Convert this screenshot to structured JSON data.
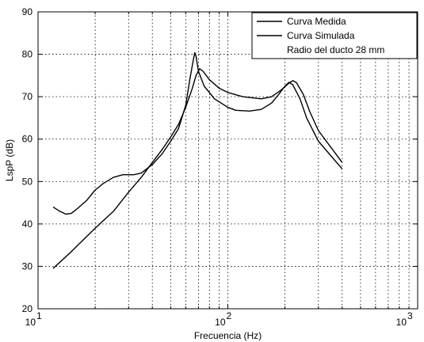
{
  "chart_data": {
    "type": "line",
    "xlabel": "Frecuencia (Hz)",
    "ylabel": "LspP  (dB)",
    "xscale": "log",
    "xlim": [
      10,
      1000
    ],
    "ylim": [
      20,
      90
    ],
    "grid": true,
    "legend_position": "top-right",
    "x_ticks": [
      {
        "value": 10,
        "base": "10",
        "exp": "1"
      },
      {
        "value": 100,
        "base": "10",
        "exp": "2"
      },
      {
        "value": 1000,
        "base": "10",
        "exp": "3"
      }
    ],
    "y_ticks": [
      20,
      30,
      40,
      50,
      60,
      70,
      80,
      90
    ],
    "legend_note": "Radio del ducto 28 mm",
    "series": [
      {
        "name": "Curva Medida",
        "color": "#000000",
        "points": [
          [
            12,
            44
          ],
          [
            13,
            43
          ],
          [
            14,
            42.3
          ],
          [
            15,
            42.5
          ],
          [
            16,
            43.5
          ],
          [
            18,
            45.5
          ],
          [
            20,
            48
          ],
          [
            22,
            49.5
          ],
          [
            25,
            51
          ],
          [
            28,
            51.6
          ],
          [
            32,
            51.6
          ],
          [
            35,
            52
          ],
          [
            40,
            54
          ],
          [
            45,
            56.5
          ],
          [
            50,
            59.5
          ],
          [
            55,
            62.5
          ],
          [
            60,
            68
          ],
          [
            63,
            74
          ],
          [
            66,
            79
          ],
          [
            67,
            80.4
          ],
          [
            68,
            79.5
          ],
          [
            70,
            76
          ],
          [
            75,
            72.5
          ],
          [
            85,
            69.5
          ],
          [
            100,
            67.5
          ],
          [
            110,
            66.8
          ],
          [
            130,
            66.6
          ],
          [
            150,
            67
          ],
          [
            170,
            68.5
          ],
          [
            185,
            70.5
          ],
          [
            200,
            72.5
          ],
          [
            210,
            73.4
          ],
          [
            220,
            72.8
          ],
          [
            240,
            69.5
          ],
          [
            260,
            65
          ],
          [
            300,
            59.5
          ],
          [
            350,
            56
          ],
          [
            400,
            53
          ]
        ]
      },
      {
        "name": "Curva Simulada",
        "color": "#000000",
        "points": [
          [
            12,
            29.5
          ],
          [
            15,
            33.5
          ],
          [
            20,
            39
          ],
          [
            25,
            43
          ],
          [
            30,
            47.5
          ],
          [
            35,
            51
          ],
          [
            40,
            54.5
          ],
          [
            45,
            57.5
          ],
          [
            50,
            60.5
          ],
          [
            55,
            63.5
          ],
          [
            60,
            67.5
          ],
          [
            65,
            72
          ],
          [
            68,
            75
          ],
          [
            71,
            76.6
          ],
          [
            74,
            76
          ],
          [
            80,
            74
          ],
          [
            90,
            72
          ],
          [
            100,
            71
          ],
          [
            120,
            70
          ],
          [
            150,
            69.5
          ],
          [
            170,
            70
          ],
          [
            190,
            71.5
          ],
          [
            210,
            73.2
          ],
          [
            220,
            73.8
          ],
          [
            230,
            73.3
          ],
          [
            250,
            70.5
          ],
          [
            270,
            66.5
          ],
          [
            300,
            62
          ],
          [
            350,
            58
          ],
          [
            400,
            54.5
          ]
        ]
      }
    ]
  }
}
